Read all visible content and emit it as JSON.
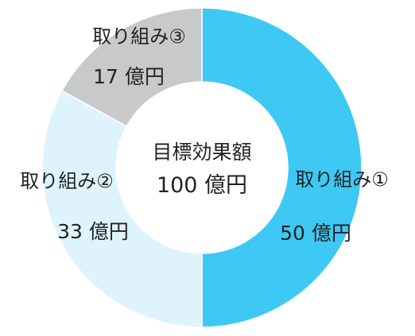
{
  "chart_data": {
    "type": "pie",
    "style": "donut",
    "center_label": "目標効果額",
    "center_value": "100 億円",
    "slices": [
      {
        "name": "取り組み①",
        "value": 50,
        "value_label": "50 億円",
        "color": "#3ec8f4"
      },
      {
        "name": "取り組み②",
        "value": 33,
        "value_label": "33 億円",
        "color": "#dff3fd"
      },
      {
        "name": "取り組み③",
        "value": 17,
        "value_label": "17 億円",
        "color": "#c8c9ca"
      }
    ]
  }
}
